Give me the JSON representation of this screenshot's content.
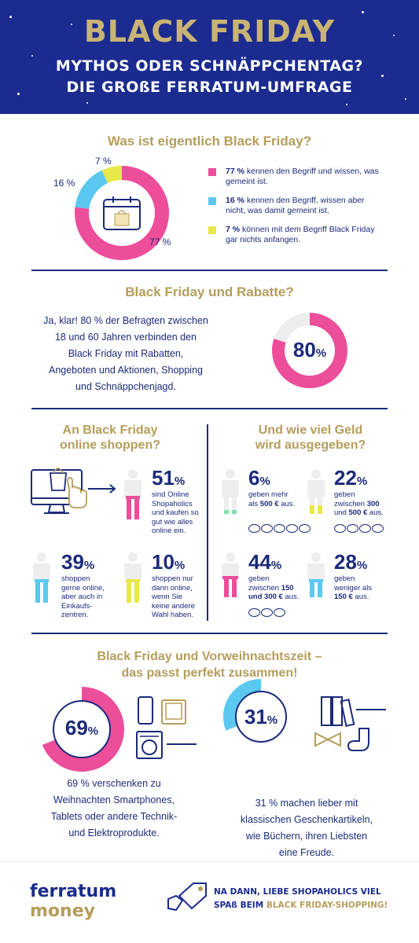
{
  "header": {
    "title": "BLACK FRIDAY",
    "subtitle_line1": "MYTHOS ODER SCHNÄPPCHENTAG?",
    "subtitle_line2": "DIE GROßE FERRATUM-UMFRAGE"
  },
  "section1": {
    "title": "Was ist eigentlich Black Friday?",
    "chart_data": {
      "type": "pie",
      "categories": [
        "77 %",
        "16 %",
        "7 %"
      ],
      "values": [
        77,
        16,
        7
      ]
    },
    "labels": {
      "p77": "77 %",
      "p16": "16 %",
      "p7": "7 %"
    },
    "legend": [
      {
        "bold": "77 %",
        "text": " kennen den Begriff und wissen, was gemeint ist.",
        "color": "#ec4e9a"
      },
      {
        "bold": "16 %",
        "text": " kennen den Begriff, wissen aber nicht, was damit gemeint ist.",
        "color": "#5ac8f0"
      },
      {
        "bold": "7 %",
        "text": " können mit dem Begriff Black Friday gar nichts anfangen.",
        "color": "#e8e84a"
      }
    ],
    "colors": {
      "pink": "#ec4e9a",
      "blue": "#5ac8f0",
      "yellow": "#e8e84a"
    }
  },
  "section2": {
    "title": "Black Friday und Rabatte?",
    "text_lines": [
      "Ja, klar! 80 % der Befragten zwischen",
      "18 und 60 Jahren verbinden den",
      "Black Friday mit Rabatten,",
      "Angeboten und Aktionen, Shopping",
      "und Schnäppchenjagd."
    ],
    "value": "80",
    "unit": "%",
    "percent": 80
  },
  "section3": {
    "left_title_1": "An Black Friday",
    "left_title_2": "online shoppen?",
    "right_title_1": "Und wie viel Geld",
    "right_title_2": "wird ausgegeben?",
    "online": [
      {
        "value": "51",
        "unit": "%",
        "lines": [
          "sind Online",
          "Shopaholics",
          "und kaufen so",
          "gut wie alles",
          "online ein."
        ]
      },
      {
        "value": "39",
        "unit": "%",
        "lines": [
          "shoppen",
          "gerne online,",
          "aber auch in",
          "Einkaufs-",
          "zentren."
        ]
      },
      {
        "value": "10",
        "unit": "%",
        "lines": [
          "shoppen nur",
          "dann online,",
          "wenn Sie",
          "keine andere",
          "Wahl haben."
        ]
      }
    ],
    "spend": [
      {
        "value": "6",
        "unit": "%",
        "l1": "geben mehr",
        "l2a": "als ",
        "l2b": "500 € ",
        "l2c": "aus."
      },
      {
        "value": "22",
        "unit": "%",
        "l1": "geben",
        "l2a": "zwischen ",
        "l2b": "300",
        "l3a": "und ",
        "l3b": "500 €",
        "l3c": " aus."
      },
      {
        "value": "44",
        "unit": "%",
        "l1": "geben",
        "l2a": "zwischen ",
        "l2b": "150",
        "l3a": "",
        "l3b": "und 300 €",
        "l3c": " aus."
      },
      {
        "value": "28",
        "unit": "%",
        "l1": "geben",
        "l2a": "weniger als",
        "l3b": "150 €",
        "l3c": " aus."
      }
    ]
  },
  "section4": {
    "title_1": "Black Friday und Vorweihnachtszeit –",
    "title_2": "das passt perfekt zusammen!",
    "left": {
      "value": "69",
      "unit": "%",
      "percent": 69,
      "lines": [
        "69 % verschenken zu",
        "Weihnachten Smartphones,",
        "Tablets oder andere Technik-",
        "und Elektroprodukte."
      ]
    },
    "right": {
      "value": "31",
      "unit": "%",
      "percent": 31,
      "lines": [
        "31 % machen lieber mit",
        "klassischen Geschenkartikeln,",
        "wie Büchern, ihren Liebsten",
        "eine Freude."
      ]
    }
  },
  "footer": {
    "logo_1": "ferratum",
    "logo_2": "money",
    "cta_1": "NA DANN, LIEBE SHOPAHOLICS VIEL",
    "cta_2a": "SPAß BEIM ",
    "cta_2b": "BLACK FRIDAY-SHOPPING!"
  }
}
